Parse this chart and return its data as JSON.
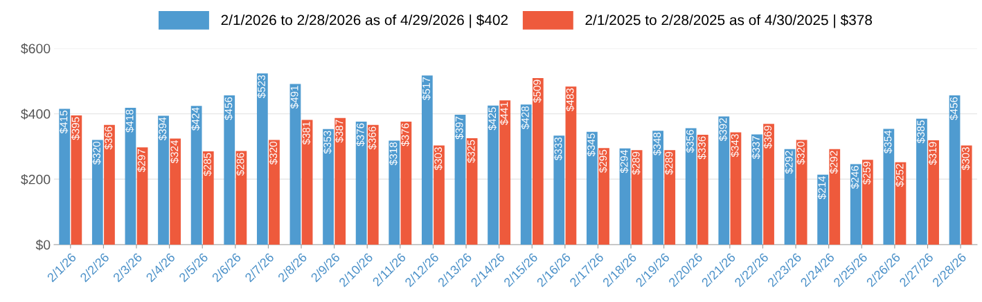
{
  "chart_data": {
    "type": "bar",
    "categories": [
      "2/1/26",
      "2/2/26",
      "2/3/26",
      "2/4/26",
      "2/5/26",
      "2/6/26",
      "2/7/26",
      "2/8/26",
      "2/9/26",
      "2/10/26",
      "2/11/26",
      "2/12/26",
      "2/13/26",
      "2/14/26",
      "2/15/26",
      "2/16/26",
      "2/17/26",
      "2/18/26",
      "2/19/26",
      "2/20/26",
      "2/21/26",
      "2/22/26",
      "2/23/26",
      "2/24/26",
      "2/25/26",
      "2/26/26",
      "2/27/26",
      "2/28/26"
    ],
    "series": [
      {
        "name": "2/1/2026 to 2/28/2026 as of 4/29/2026 | $402",
        "color": "#4f9bd0",
        "values": [
          415,
          320,
          418,
          394,
          424,
          456,
          523,
          491,
          353,
          376,
          318,
          517,
          397,
          425,
          428,
          333,
          345,
          294,
          348,
          356,
          392,
          337,
          292,
          214,
          246,
          354,
          385,
          456
        ],
        "value_labels": [
          "$415",
          "$320",
          "$418",
          "$394",
          "$424",
          "$456",
          "$523",
          "$491",
          "$353",
          "$376",
          "$318",
          "$517",
          "$397",
          "$425",
          "$428",
          "$333",
          "$345",
          "$294",
          "$348",
          "$356",
          "$392",
          "$337",
          "$292",
          "$214",
          "$246",
          "$354",
          "$385",
          "$456"
        ]
      },
      {
        "name": "2/1/2025 to 2/28/2025 as of 4/30/2025 | $378",
        "color": "#ee5a3c",
        "values": [
          395,
          366,
          297,
          324,
          285,
          286,
          320,
          381,
          387,
          366,
          376,
          303,
          325,
          441,
          509,
          483,
          295,
          289,
          289,
          336,
          343,
          369,
          320,
          292,
          259,
          252,
          319,
          303
        ],
        "value_labels": [
          "$395",
          "$366",
          "$297",
          "$324",
          "$285",
          "$286",
          "$320",
          "$381",
          "$387",
          "$366",
          "$376",
          "$303",
          "$325",
          "$441",
          "$509",
          "$483",
          "$295",
          "$289",
          "$289",
          "$336",
          "$343",
          "$369",
          "$320",
          "$292",
          "$259",
          "$252",
          "$319",
          "$303"
        ]
      }
    ],
    "ylim": [
      0,
      600
    ],
    "yticks": [
      {
        "value": 0,
        "label": "$0"
      },
      {
        "value": 200,
        "label": "$200"
      },
      {
        "value": 400,
        "label": "$400"
      },
      {
        "value": 600,
        "label": "$600"
      }
    ],
    "grid": "y",
    "legend": "top"
  }
}
